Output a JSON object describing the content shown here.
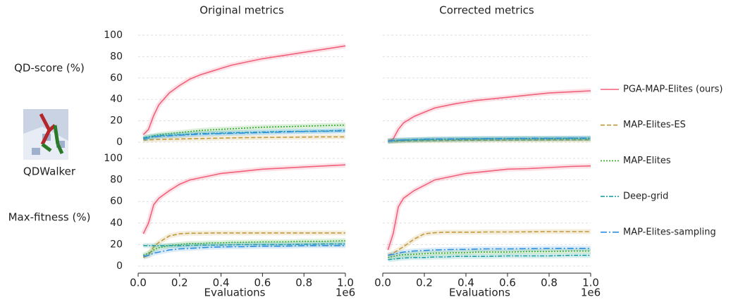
{
  "environment": "QDWalker",
  "legend_position": "right",
  "chart_data": [
    {
      "type": "line",
      "title": "Original metrics",
      "ylabel": "QD-score (%)",
      "x": [
        0.025,
        0.05,
        0.075,
        0.1,
        0.15,
        0.2,
        0.25,
        0.3,
        0.35,
        0.4,
        0.45,
        0.5,
        0.6,
        0.7,
        0.8,
        0.9,
        1.0
      ],
      "xlim": [
        0,
        1
      ],
      "ylim": [
        0,
        100
      ],
      "yticks": [
        0,
        20,
        40,
        60,
        80,
        100
      ],
      "grid": true,
      "series": [
        {
          "name": "PGA-MAP-Elites (ours)",
          "color": "#f0607a",
          "dash": "solid",
          "values": [
            7,
            12,
            25,
            35,
            46,
            53,
            59,
            63,
            66,
            69,
            72,
            74,
            78,
            81,
            84,
            87,
            90
          ]
        },
        {
          "name": "MAP-Elites-ES",
          "color": "#c09a3c",
          "dash": "dashed",
          "values": [
            2,
            2.2,
            2.4,
            2.6,
            2.8,
            3,
            3.2,
            3.4,
            3.6,
            3.8,
            4,
            4.2,
            4.4,
            4.6,
            4.8,
            5,
            5
          ]
        },
        {
          "name": "MAP-Elites",
          "color": "#3aa830",
          "dash": "dotted",
          "values": [
            3,
            5,
            6,
            7,
            8,
            9,
            10,
            11,
            11.5,
            12,
            12.5,
            13,
            14,
            14.5,
            15,
            15.5,
            16
          ]
        },
        {
          "name": "Deep-grid",
          "color": "#20a0a0",
          "dash": "dashdot",
          "values": [
            4,
            5,
            5.5,
            6,
            6.5,
            7,
            7.5,
            8,
            8.2,
            8.5,
            8.8,
            9,
            9.5,
            10,
            10.2,
            10.5,
            11
          ]
        },
        {
          "name": "MAP-Elites-sampling",
          "color": "#3090e0",
          "dash": "longdashdot",
          "values": [
            3,
            4,
            5,
            5.5,
            6,
            6.5,
            7,
            7.5,
            7.8,
            8,
            8.3,
            8.5,
            9,
            9.5,
            10,
            10.2,
            10.5
          ]
        }
      ]
    },
    {
      "type": "line",
      "title": "Corrected metrics",
      "x": [
        0.025,
        0.05,
        0.075,
        0.1,
        0.15,
        0.2,
        0.25,
        0.3,
        0.35,
        0.4,
        0.45,
        0.5,
        0.6,
        0.7,
        0.8,
        0.9,
        1.0
      ],
      "xlim": [
        0,
        1
      ],
      "ylim": [
        0,
        100
      ],
      "grid": true,
      "series": [
        {
          "color": "#f0607a",
          "dash": "solid",
          "values": [
            1,
            3,
            12,
            18,
            24,
            28,
            32,
            34,
            36,
            37.5,
            39,
            40,
            42,
            44,
            46,
            47,
            48
          ]
        },
        {
          "color": "#c09a3c",
          "dash": "dashed",
          "values": [
            1,
            1,
            1,
            1.2,
            1.3,
            1.5,
            1.5,
            1.6,
            1.7,
            1.8,
            1.8,
            1.9,
            2,
            2,
            2.1,
            2.2,
            2.2
          ]
        },
        {
          "color": "#3aa830",
          "dash": "dotted",
          "values": [
            1,
            1.2,
            1.5,
            1.8,
            2,
            2.2,
            2.4,
            2.5,
            2.6,
            2.7,
            2.8,
            2.9,
            3,
            3,
            3.1,
            3.2,
            3.2
          ]
        },
        {
          "color": "#20a0a0",
          "dash": "dashdot",
          "values": [
            1,
            1.5,
            1.8,
            2,
            2.2,
            2.4,
            2.6,
            2.8,
            2.9,
            3,
            3.1,
            3.2,
            3.3,
            3.4,
            3.5,
            3.6,
            3.7
          ]
        },
        {
          "color": "#3090e0",
          "dash": "longdashdot",
          "values": [
            1,
            1.5,
            2,
            2.2,
            2.5,
            2.8,
            3,
            3,
            3.1,
            3.2,
            3.3,
            3.4,
            3.5,
            3.6,
            3.7,
            3.8,
            3.9
          ]
        }
      ]
    },
    {
      "type": "line",
      "ylabel": "Max-fitness (%)",
      "xlabel": "Evaluations",
      "x_offset_label": "1e6",
      "x": [
        0.025,
        0.05,
        0.075,
        0.1,
        0.15,
        0.2,
        0.25,
        0.3,
        0.35,
        0.4,
        0.45,
        0.5,
        0.6,
        0.7,
        0.8,
        0.9,
        1.0
      ],
      "xlim": [
        0,
        1
      ],
      "ylim": [
        0,
        100
      ],
      "yticks": [
        0,
        20,
        40,
        60,
        80,
        100
      ],
      "grid": true,
      "xticks": [
        {
          "value": 0,
          "label": "0.0"
        },
        {
          "value": 0.2,
          "label": "0.2"
        },
        {
          "value": 0.4,
          "label": "0.4"
        },
        {
          "value": 0.6,
          "label": "0.6"
        },
        {
          "value": 0.8,
          "label": "0.8"
        },
        {
          "value": 1,
          "label": "1.0"
        }
      ],
      "series": [
        {
          "color": "#f0607a",
          "dash": "solid",
          "values": [
            30,
            40,
            57,
            63,
            70,
            76,
            80,
            82,
            84,
            86,
            87,
            88,
            90,
            91,
            92,
            93,
            94
          ]
        },
        {
          "color": "#c09a3c",
          "dash": "dashed",
          "values": [
            8,
            10,
            18,
            22,
            28,
            30,
            30.5,
            30.5,
            30.7,
            30.8,
            30.8,
            30.8,
            30.8,
            30.8,
            30.8,
            30.8,
            30.8
          ]
        },
        {
          "color": "#3aa830",
          "dash": "dotted",
          "values": [
            10,
            12,
            15,
            17,
            19,
            20,
            21,
            21,
            21.5,
            21.5,
            22,
            22,
            22.5,
            22.5,
            23,
            23,
            23.5
          ]
        },
        {
          "color": "#20a0a0",
          "dash": "dashdot",
          "values": [
            19,
            19,
            19,
            19,
            19,
            19,
            19.2,
            19.5,
            19.5,
            19.5,
            19.8,
            20,
            20,
            20,
            20.2,
            20.5,
            20.5
          ]
        },
        {
          "color": "#3090e0",
          "dash": "longdashdot",
          "values": [
            9,
            10,
            12,
            13,
            15,
            16,
            16.5,
            17,
            17.5,
            17.8,
            18,
            18,
            18.5,
            18.5,
            19,
            19,
            19
          ]
        }
      ]
    },
    {
      "type": "line",
      "xlabel": "Evaluations",
      "x_offset_label": "1e6",
      "x": [
        0.025,
        0.05,
        0.075,
        0.1,
        0.15,
        0.2,
        0.25,
        0.3,
        0.35,
        0.4,
        0.45,
        0.5,
        0.6,
        0.7,
        0.8,
        0.9,
        1.0
      ],
      "xlim": [
        0,
        1
      ],
      "ylim": [
        0,
        100
      ],
      "grid": true,
      "xticks": [
        {
          "value": 0,
          "label": "0.0"
        },
        {
          "value": 0.2,
          "label": "0.2"
        },
        {
          "value": 0.4,
          "label": "0.4"
        },
        {
          "value": 0.6,
          "label": "0.6"
        },
        {
          "value": 0.8,
          "label": "0.8"
        },
        {
          "value": 1,
          "label": "1.0"
        }
      ],
      "series": [
        {
          "color": "#f0607a",
          "dash": "solid",
          "values": [
            15,
            30,
            55,
            63,
            70,
            75,
            80,
            82,
            84,
            86,
            87,
            88,
            90,
            90.5,
            91.5,
            92.5,
            93
          ]
        },
        {
          "color": "#c09a3c",
          "dash": "dashed",
          "values": [
            10,
            12,
            15,
            18,
            25,
            30,
            31,
            31.5,
            31.5,
            31.5,
            31.5,
            31.7,
            31.7,
            31.8,
            32,
            32,
            32
          ]
        },
        {
          "color": "#3aa830",
          "dash": "dotted",
          "values": [
            8,
            9,
            10,
            10.5,
            11,
            11.5,
            12,
            12,
            12.5,
            12.5,
            13,
            13,
            13,
            13.5,
            13.5,
            14,
            14
          ]
        },
        {
          "color": "#20a0a0",
          "dash": "dashdot",
          "values": [
            6,
            6.5,
            7,
            7.5,
            8,
            8,
            8.5,
            8.5,
            9,
            9,
            9,
            9,
            9.5,
            9.5,
            9.5,
            10,
            10
          ]
        },
        {
          "color": "#3090e0",
          "dash": "longdashdot",
          "values": [
            10,
            11,
            12,
            13,
            14,
            14.5,
            15,
            15.2,
            15.5,
            15.5,
            15.8,
            16,
            16,
            16.2,
            16.5,
            16.5,
            16.5
          ]
        }
      ]
    }
  ]
}
